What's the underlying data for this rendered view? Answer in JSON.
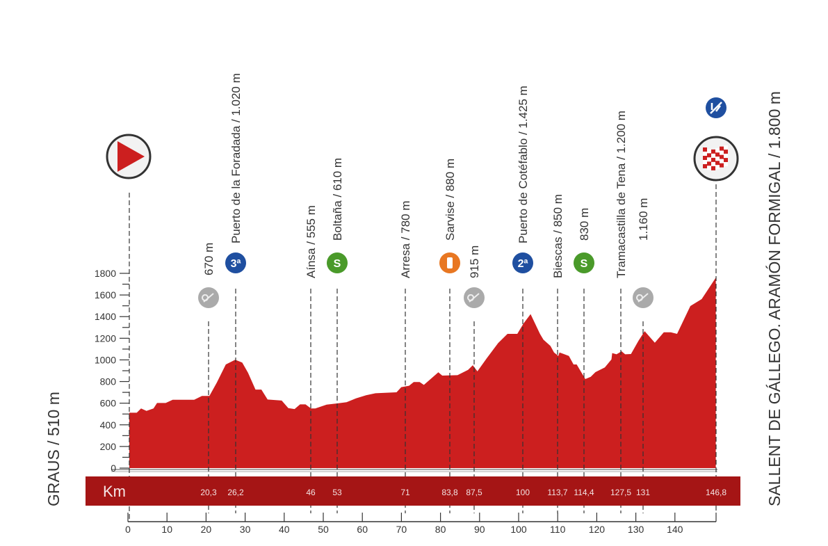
{
  "colors": {
    "profile": "#cc1f1f",
    "km_bar": "#a51515",
    "mountain_icon": "#1f4fa0",
    "sprint_icon": "#4a9a2a",
    "feed_icon": "#e87722",
    "intermediate_icon": "#aaaaaa"
  },
  "start": {
    "label": "GRAUS / 510 m",
    "icon": "start-play-icon"
  },
  "finish": {
    "label": "SALLENT DE GÁLLEGO. ARAMÓN FORMIGAL / 1.800 m",
    "icon": "checkered-flag-icon",
    "category_icon": "special-category-climb-icon"
  },
  "km_bar": {
    "label": "Km"
  },
  "waypoints": [
    {
      "km": "20,3",
      "label": "670 m",
      "icon": "intermediate-point-icon"
    },
    {
      "km": "26,2",
      "label": "Puerto de la Foradada / 1.020 m",
      "icon": "third-category-climb-icon",
      "icon_text": "3ª"
    },
    {
      "km": "46",
      "label": "Aínsa / 555 m"
    },
    {
      "km": "53",
      "label": "Boltaña / 610 m",
      "icon": "sprint-icon",
      "icon_text": "S"
    },
    {
      "km": "71",
      "label": "Arresa / 780 m"
    },
    {
      "km": "83,8",
      "label": "Sarvise / 880 m",
      "icon": "feed-zone-icon"
    },
    {
      "km": "87,5",
      "label": "915 m",
      "icon": "intermediate-point-icon"
    },
    {
      "km": "100",
      "label": "Puerto de Cotéfablo / 1.425 m",
      "icon": "second-category-climb-icon",
      "icon_text": "2ª"
    },
    {
      "km": "113,7",
      "label": "Biescas / 850 m"
    },
    {
      "km": "114,4",
      "label": "830 m",
      "icon": "sprint-icon",
      "icon_text": "S"
    },
    {
      "km": "127,5",
      "label": "Tramacastilla de Tena / 1.200 m"
    },
    {
      "km": "131",
      "label": "1.160 m",
      "icon": "intermediate-point-icon"
    },
    {
      "km": "146,8",
      "label": ""
    }
  ],
  "chart_data": {
    "type": "area",
    "title": "",
    "xlabel": "",
    "ylabel": "",
    "xlim": [
      0,
      150
    ],
    "ylim": [
      0,
      1800
    ],
    "x_ticks": [
      "0",
      "10",
      "20",
      "30",
      "40",
      "50",
      "60",
      "70",
      "80",
      "90",
      "100",
      "110",
      "120",
      "130",
      "140"
    ],
    "y_ticks": [
      "0",
      "200",
      "400",
      "600",
      "800",
      "1000",
      "1200",
      "1400",
      "1600",
      "1800"
    ],
    "grid": false,
    "profile": {
      "distance_km": [
        0,
        0.1,
        1.9,
        3.0,
        4.4,
        6.2,
        7.1,
        9.3,
        11.1,
        16.6,
        18.6,
        20.5,
        22.4,
        24.7,
        27.1,
        28.9,
        30.4,
        32.3,
        33.8,
        35.4,
        39.0,
        40.7,
        42.3,
        43.7,
        45.1,
        46.5,
        47.6,
        50.5,
        53.2,
        55.6,
        58.0,
        60.6,
        63.0,
        68.4,
        69.6,
        71.6,
        72.8,
        74.3,
        75.4,
        79.1,
        80.1,
        84.0,
        86.7,
        87.9,
        89.1,
        91.5,
        94.4,
        96.8,
        99.3,
        100.9,
        102.7,
        105.1,
        106.0,
        107.8,
        108.7,
        109.8,
        110.1,
        112.5,
        113.7,
        114.5,
        116.7,
        118.1,
        119.3,
        121.7,
        123.4,
        123.6,
        124.7,
        126.0,
        126.9,
        128.4,
        130.3,
        131.9,
        134.5,
        136.8,
        138.6,
        140.2,
        143.6,
        146.5,
        150.1
      ],
      "elevation_m": [
        512,
        512,
        512,
        551,
        529,
        551,
        602,
        602,
        632,
        632,
        667,
        667,
        791,
        958,
        1001,
        975,
        881,
        726,
        726,
        634,
        624,
        555,
        546,
        589,
        589,
        551,
        551,
        587,
        598,
        609,
        645,
        673,
        692,
        701,
        748,
        761,
        795,
        795,
        769,
        885,
        855,
        859,
        908,
        951,
        894,
        1016,
        1155,
        1241,
        1241,
        1337,
        1423,
        1241,
        1187,
        1129,
        1069,
        1037,
        1069,
        1037,
        958,
        958,
        823,
        844,
        887,
        930,
        1005,
        1063,
        1052,
        1080,
        1052,
        1054,
        1176,
        1266,
        1159,
        1255,
        1255,
        1241,
        1498,
        1562,
        1760
      ]
    }
  }
}
